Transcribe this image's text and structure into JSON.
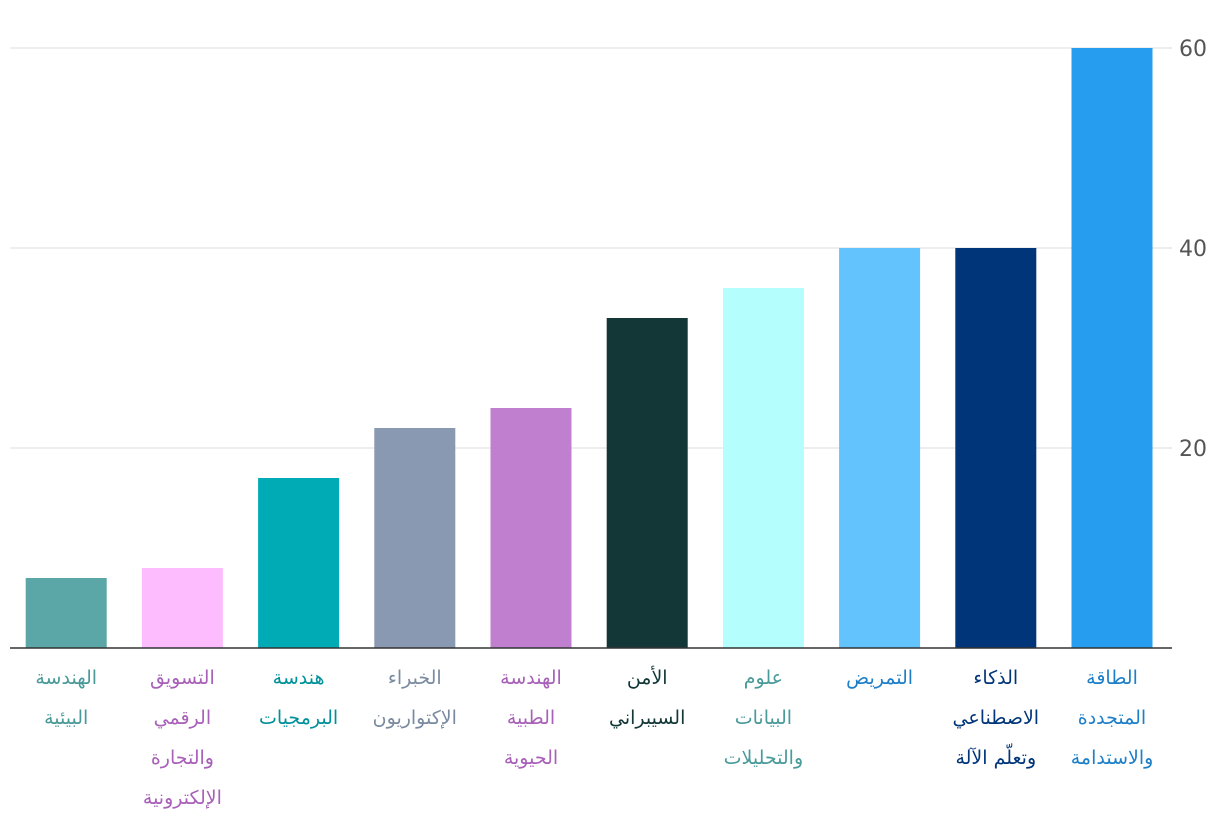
{
  "chart_data": {
    "type": "bar",
    "orientation": "vertical",
    "y_axis_side": "right",
    "grid": true,
    "ylim": [
      0,
      60
    ],
    "yticks": [
      20,
      40,
      60
    ],
    "bars": [
      {
        "label_lines": [
          "الطاقة",
          "المتجددة",
          "والاستدامة"
        ],
        "value": 60,
        "color": "#269dee",
        "label_color": "#1e7fc8"
      },
      {
        "label_lines": [
          "الذكاء",
          "الاصطناعي",
          "وتعلّم الآلة"
        ],
        "value": 40,
        "color": "#00357a",
        "label_color": "#00357a"
      },
      {
        "label_lines": [
          "التمريض"
        ],
        "value": 40,
        "color": "#63c3fd",
        "label_color": "#1e7fc8"
      },
      {
        "label_lines": [
          "علوم",
          "البيانات",
          "والتحليلات"
        ],
        "value": 36,
        "color": "#b5fefe",
        "label_color": "#4a9a9a"
      },
      {
        "label_lines": [
          "الأمن",
          "السيبراني"
        ],
        "value": 33,
        "color": "#133636",
        "label_color": "#133636"
      },
      {
        "label_lines": [
          "الهندسة",
          "الطبية",
          "الحيوية"
        ],
        "value": 24,
        "color": "#c080cf",
        "label_color": "#a860b8"
      },
      {
        "label_lines": [
          "الخبراء",
          "الإكتواريون"
        ],
        "value": 22,
        "color": "#8899b1",
        "label_color": "#7a8aa0"
      },
      {
        "label_lines": [
          "هندسة",
          "البرمجيات"
        ],
        "value": 17,
        "color": "#00abb5",
        "label_color": "#00909a"
      },
      {
        "label_lines": [
          "التسويق",
          "الرقمي",
          "والتجارة",
          "الإلكترونية"
        ],
        "value": 8,
        "color": "#fdbcfe",
        "label_color": "#a860b8"
      },
      {
        "label_lines": [
          "الهندسة",
          "البيئية"
        ],
        "value": 7,
        "color": "#5ba6a6",
        "label_color": "#4a9a9a"
      }
    ]
  }
}
